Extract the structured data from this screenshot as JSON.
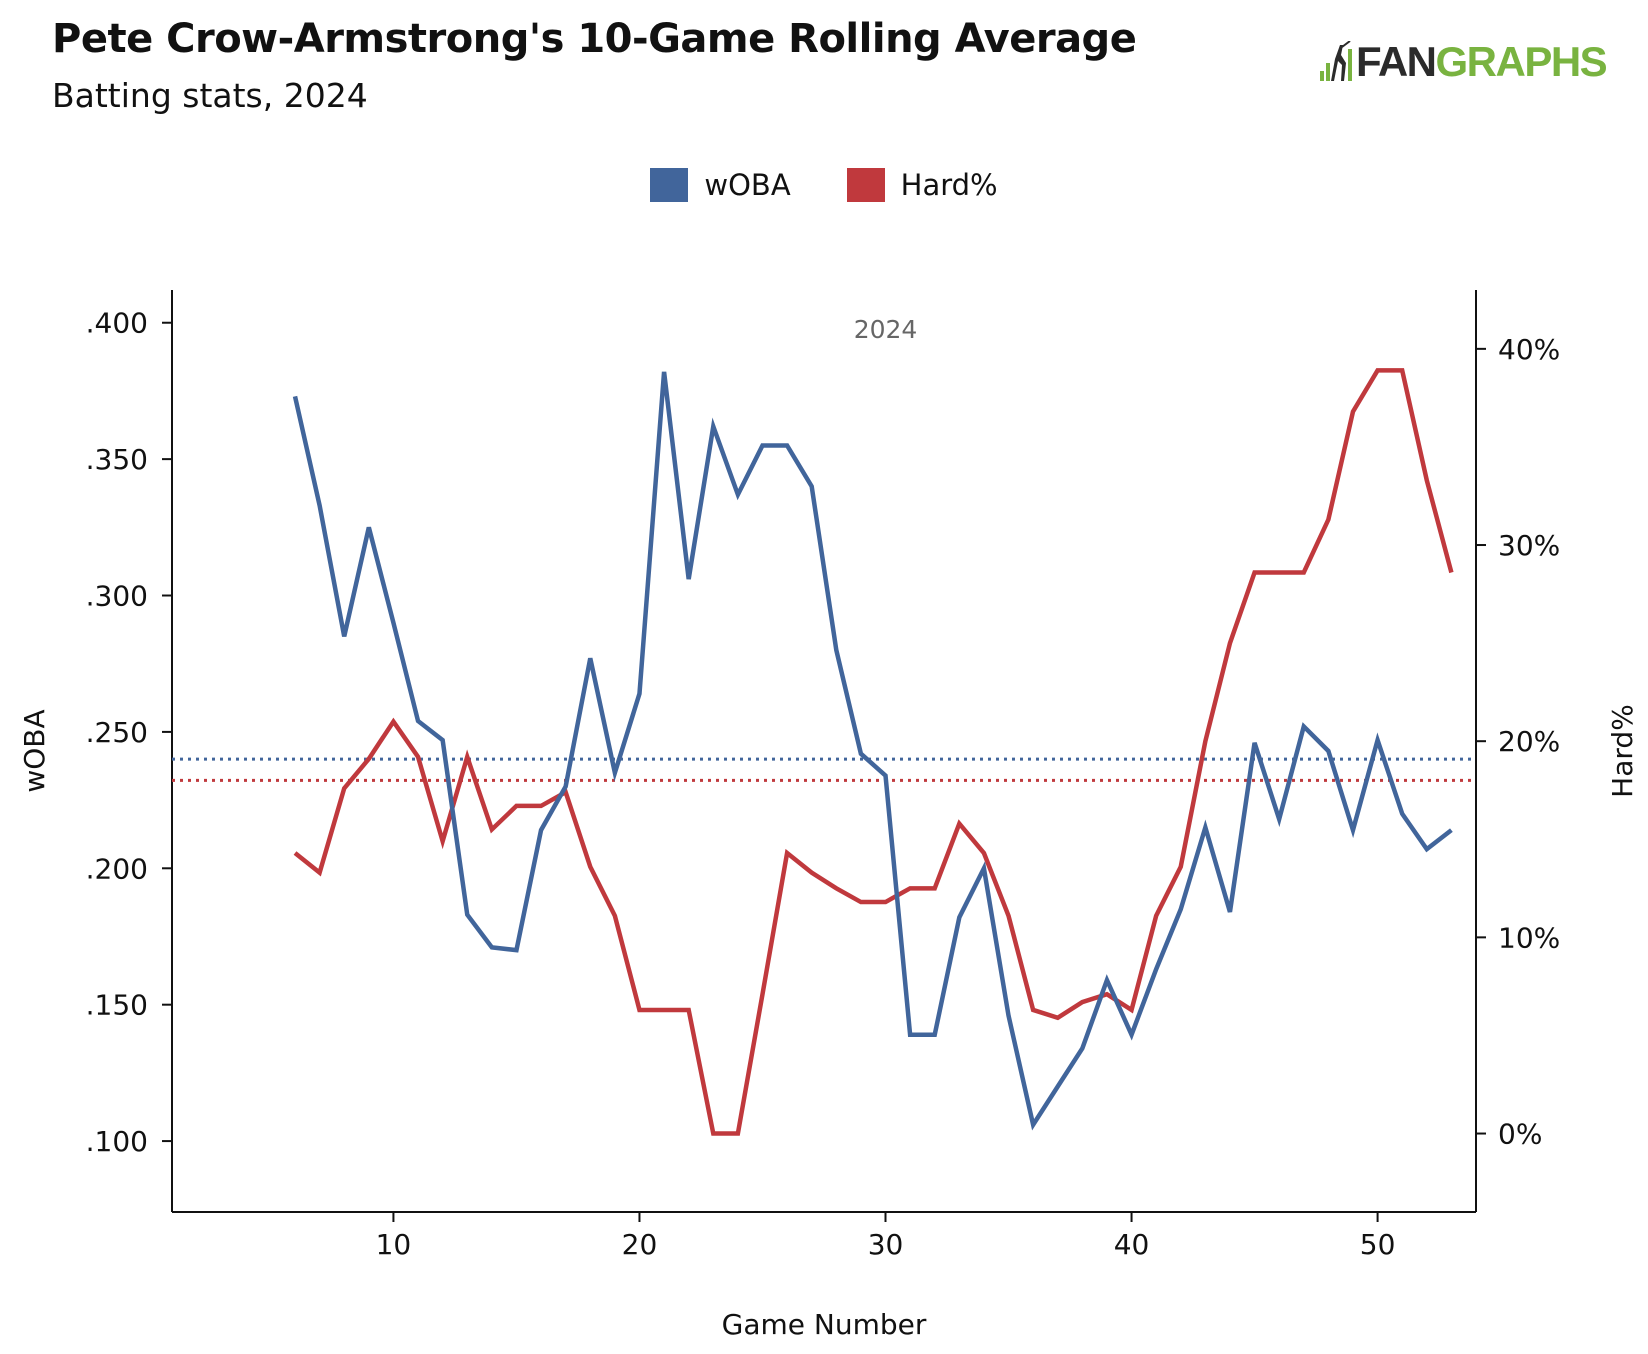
{
  "header": {
    "title": "Pete Crow-Armstrong's 10-Game Rolling Average",
    "subtitle": "Batting stats, 2024"
  },
  "logo": {
    "text_fan": "FAN",
    "text_graphs": "GRAPHS"
  },
  "colors": {
    "woba": "#41659b",
    "hard": "#c0393d",
    "axis": "#111111"
  },
  "chart_data": {
    "type": "line",
    "title": "Pete Crow-Armstrong's 10-Game Rolling Average",
    "subtitle": "Batting stats, 2024",
    "annotation": "2024",
    "xlabel": "Game Number",
    "ylabel_left": "wOBA",
    "ylabel_right": "Hard%",
    "xlim": [
      1,
      54
    ],
    "ylim_left": [
      0.074,
      0.412
    ],
    "ylim_right": [
      -4,
      43
    ],
    "x_ticks": [
      10,
      20,
      30,
      40,
      50
    ],
    "x_tick_labels": [
      "10",
      "20",
      "30",
      "40",
      "50"
    ],
    "y_left_ticks": [
      0.1,
      0.15,
      0.2,
      0.25,
      0.3,
      0.35,
      0.4
    ],
    "y_left_tick_labels": [
      ".100",
      ".150",
      ".200",
      ".250",
      ".300",
      ".350",
      ".400"
    ],
    "y_right_ticks": [
      0,
      10,
      20,
      30,
      40
    ],
    "y_right_tick_labels": [
      "0%",
      "10%",
      "20%",
      "30%",
      "40%"
    ],
    "legend": [
      "wOBA",
      "Hard%"
    ],
    "legend_position": "top-center",
    "grid": false,
    "x": [
      6,
      7,
      8,
      9,
      10,
      11,
      12,
      13,
      14,
      15,
      16,
      17,
      18,
      19,
      20,
      21,
      22,
      23,
      24,
      25,
      26,
      27,
      28,
      29,
      30,
      31,
      32,
      33,
      34,
      35,
      36,
      37,
      38,
      39,
      40,
      41,
      42,
      43,
      44,
      45,
      46,
      47,
      48,
      49,
      50,
      51,
      52,
      53
    ],
    "series": [
      {
        "name": "wOBA",
        "axis": "left",
        "average": 0.24,
        "values": [
          0.373,
          0.333,
          0.285,
          0.325,
          0.29,
          0.254,
          0.247,
          0.183,
          0.171,
          0.17,
          0.214,
          0.23,
          0.277,
          0.235,
          0.264,
          0.382,
          0.306,
          0.362,
          0.337,
          0.355,
          0.355,
          0.34,
          0.28,
          0.242,
          0.234,
          0.139,
          0.139,
          0.182,
          0.2,
          0.146,
          0.106,
          0.12,
          0.134,
          0.159,
          0.139,
          0.163,
          0.185,
          0.215,
          0.184,
          0.246,
          0.218,
          0.252,
          0.243,
          0.214,
          0.247,
          0.22,
          0.207,
          0.214
        ]
      },
      {
        "name": "Hard%",
        "axis": "right",
        "average": 18.0,
        "values": [
          14.3,
          13.3,
          17.6,
          19.1,
          21.0,
          19.2,
          14.9,
          19.2,
          15.5,
          16.7,
          16.7,
          17.4,
          13.6,
          11.1,
          6.3,
          6.3,
          6.3,
          0.0,
          0.0,
          7.1,
          14.3,
          13.3,
          12.5,
          11.8,
          11.8,
          12.5,
          12.5,
          15.8,
          14.3,
          11.1,
          6.3,
          5.9,
          6.7,
          7.1,
          6.3,
          11.1,
          13.6,
          20.0,
          25.0,
          28.6,
          28.6,
          28.6,
          31.3,
          36.8,
          38.9,
          38.9,
          33.3,
          28.6
        ]
      }
    ]
  }
}
